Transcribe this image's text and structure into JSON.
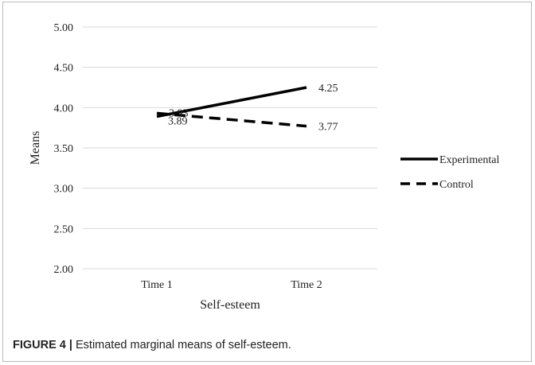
{
  "chart_data": {
    "type": "line",
    "categories": [
      "Time 1",
      "Time 2"
    ],
    "series": [
      {
        "name": "Experimental",
        "values": [
          3.89,
          4.25
        ],
        "style": "solid",
        "color": "#000000"
      },
      {
        "name": "Control",
        "values": [
          3.93,
          3.77
        ],
        "style": "dashed",
        "color": "#000000"
      }
    ],
    "data_labels": [
      {
        "series": "Experimental",
        "index": 0,
        "text": "3.89"
      },
      {
        "series": "Experimental",
        "index": 1,
        "text": "4.25"
      },
      {
        "series": "Control",
        "index": 0,
        "text": "3.93"
      },
      {
        "series": "Control",
        "index": 1,
        "text": "3.77"
      }
    ],
    "xlabel": "Self-esteem",
    "ylabel": "Means",
    "ylim": [
      2.0,
      5.0
    ],
    "yticks": [
      "2.00",
      "2.50",
      "3.00",
      "3.50",
      "4.00",
      "4.50",
      "5.00"
    ],
    "grid": true,
    "legend_position": "right"
  },
  "caption": {
    "label": "FIGURE 4 |",
    "text": " Estimated marginal means of self-esteem."
  }
}
